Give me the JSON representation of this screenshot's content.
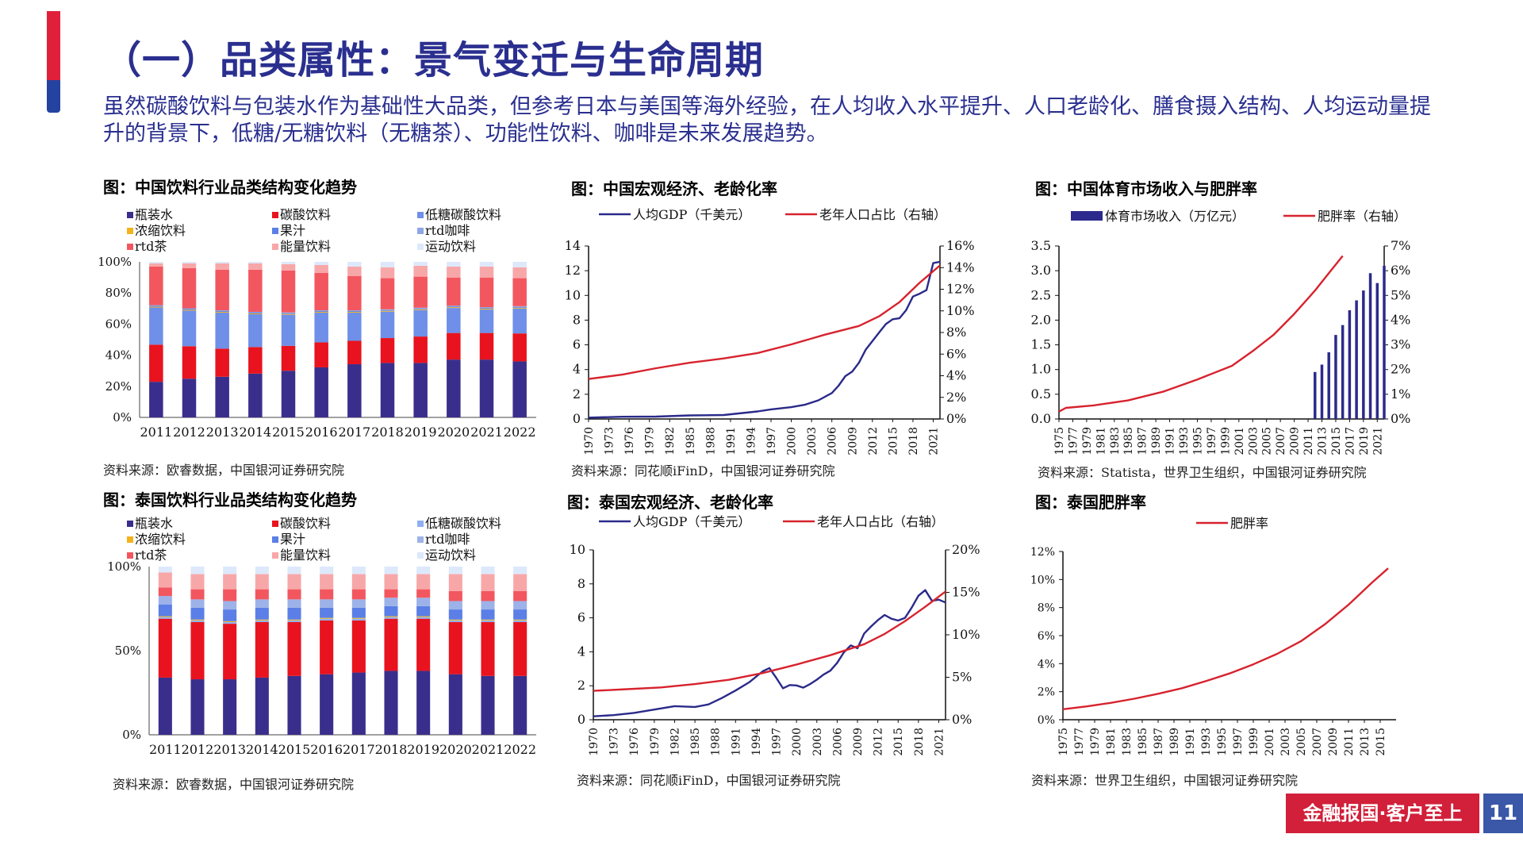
{
  "page": {
    "title": "（一）品类属性：景气变迁与生命周期",
    "intro": "虽然碳酸饮料与包装水作为基础性大品类，但参考日本与美国等海外经验，在人均收入水平提升、人口老龄化、膳食摄入结构、人均运动量提升的背景下，低糖/无糖饮料（无糖茶）、功能性饮料、咖啡是未来发展趋势。",
    "footer_slogan": "金融报国·客户至上",
    "page_number": "11",
    "colors": {
      "title": "#2a2f8f",
      "accent_red": "#d21f3a",
      "accent_blue": "#3a57a8"
    }
  },
  "panels": {
    "cn_mix": {
      "title": "图：中国饮料行业品类结构变化趋势",
      "source": "资料来源：欧睿数据，中国银河证券研究院"
    },
    "cn_macro": {
      "title": "图：中国宏观经济、老龄化率",
      "source": "资料来源：同花顺iFinD，中国银河证券研究院"
    },
    "cn_sport": {
      "title": "图：中国体育市场收入与肥胖率",
      "source": "资料来源：Statista，世界卫生组织，中国银河证券研究院"
    },
    "th_mix": {
      "title": "图：泰国饮料行业品类结构变化趋势",
      "source": "资料来源：欧睿数据，中国银河证券研究院"
    },
    "th_macro": {
      "title": "图：泰国宏观经济、老龄化率",
      "source": "资料来源：同花顺iFinD，中国银河证券研究院"
    },
    "th_obesity": {
      "title": "图：泰国肥胖率",
      "source": "资料来源：世界卫生组织，中国银河证券研究院"
    }
  },
  "chart_data": [
    {
      "id": "cn_mix",
      "type": "bar",
      "stacked": true,
      "percent": true,
      "title": "图：中国饮料行业品类结构变化趋势",
      "categories": [
        "2011",
        "2012",
        "2013",
        "2014",
        "2015",
        "2016",
        "2017",
        "2018",
        "2019",
        "2020",
        "2021",
        "2022"
      ],
      "y_ticks": [
        "0%",
        "20%",
        "40%",
        "60%",
        "80%",
        "100%"
      ],
      "ylim": [
        0,
        100
      ],
      "legend_position": "top",
      "series": [
        {
          "name": "瓶装水",
          "color": "#3a2e8c",
          "values": [
            23,
            25,
            26,
            28,
            30,
            32,
            34,
            35,
            35,
            37,
            37,
            36
          ]
        },
        {
          "name": "碳酸饮料",
          "color": "#e8131e",
          "values": [
            24,
            21,
            18,
            17,
            16,
            16,
            15,
            16,
            17,
            17,
            17,
            18
          ]
        },
        {
          "name": "低糖碳酸饮料",
          "color": "#6f8fe8",
          "values": [
            24,
            23,
            23,
            21,
            20,
            19,
            18,
            17,
            17,
            16,
            15,
            16
          ]
        },
        {
          "name": "浓缩饮料",
          "color": "#f2b31c",
          "values": [
            0.5,
            0.5,
            0.5,
            0.5,
            0.5,
            0.5,
            0.5,
            0.5,
            0.5,
            0.5,
            0.5,
            0.5
          ]
        },
        {
          "name": "果汁",
          "color": "#5b7fe6",
          "values": [
            0.5,
            0.5,
            0.5,
            0.5,
            0.5,
            0.5,
            0.5,
            0.5,
            0.5,
            0.5,
            0.5,
            0.5
          ]
        },
        {
          "name": "rtd咖啡",
          "color": "#8ea6e8",
          "values": [
            0.5,
            0.5,
            0.5,
            0.5,
            0.5,
            0.5,
            0.5,
            0.5,
            0.5,
            0.5,
            0.5,
            0.5
          ]
        },
        {
          "name": "rtd茶",
          "color": "#f2575f",
          "values": [
            25,
            26,
            26,
            27,
            27,
            24,
            22,
            20,
            20,
            18,
            19,
            18
          ]
        },
        {
          "name": "能量饮料",
          "color": "#f8a7a9",
          "values": [
            2,
            3,
            4,
            4,
            4,
            5,
            6,
            7,
            7,
            7,
            7,
            7
          ]
        },
        {
          "name": "运动饮料",
          "color": "#dde8fb",
          "values": [
            1,
            1,
            1,
            1,
            1.5,
            2,
            3,
            3.5,
            2.5,
            3,
            3,
            3.5
          ]
        }
      ]
    },
    {
      "id": "cn_macro",
      "type": "line",
      "title": "图：中国宏观经济、老龄化率",
      "x_ticks": [
        "1970",
        "1973",
        "1976",
        "1979",
        "1982",
        "1985",
        "1988",
        "1991",
        "1994",
        "1997",
        "2000",
        "2003",
        "2006",
        "2009",
        "2012",
        "2015",
        "2018",
        "2021"
      ],
      "x_range": [
        1970,
        2022
      ],
      "y_left_ticks": [
        "0",
        "2",
        "4",
        "6",
        "8",
        "10",
        "12",
        "14"
      ],
      "y_left_range": [
        0,
        14
      ],
      "y_right_ticks": [
        "0%",
        "2%",
        "4%",
        "6%",
        "8%",
        "10%",
        "12%",
        "14%",
        "16%"
      ],
      "y_right_range": [
        0,
        16
      ],
      "series": [
        {
          "name": "人均GDP（千美元）",
          "axis": "left",
          "color": "#2a2a8a",
          "x": [
            1970,
            1975,
            1980,
            1985,
            1990,
            1995,
            1997,
            2000,
            2002,
            2004,
            2006,
            2007,
            2008,
            2009,
            2010,
            2011,
            2012,
            2013,
            2014,
            2015,
            2016,
            2017,
            2018,
            2019,
            2020,
            2021,
            2022
          ],
          "y": [
            0.11,
            0.18,
            0.19,
            0.29,
            0.32,
            0.61,
            0.78,
            0.96,
            1.15,
            1.51,
            2.1,
            2.7,
            3.47,
            3.83,
            4.55,
            5.6,
            6.3,
            7.0,
            7.68,
            8.07,
            8.15,
            8.82,
            9.91,
            10.14,
            10.43,
            12.62,
            12.72
          ]
        },
        {
          "name": "老年人口占比（右轴）",
          "axis": "right",
          "color": "#d7232e",
          "x": [
            1970,
            1975,
            1980,
            1985,
            1990,
            1995,
            2000,
            2005,
            2010,
            2013,
            2016,
            2019,
            2022
          ],
          "y": [
            3.7,
            4.1,
            4.7,
            5.2,
            5.6,
            6.1,
            6.9,
            7.8,
            8.6,
            9.5,
            10.8,
            12.6,
            14.2
          ]
        }
      ]
    },
    {
      "id": "cn_sport",
      "type": "bar+line",
      "title": "图：中国体育市场收入与肥胖率",
      "x_ticks": [
        "1975",
        "1977",
        "1979",
        "1981",
        "1983",
        "1985",
        "1987",
        "1989",
        "1991",
        "1993",
        "1995",
        "1997",
        "1999",
        "2001",
        "2003",
        "2005",
        "2007",
        "2009",
        "2011",
        "2013",
        "2015",
        "2017",
        "2019",
        "2021"
      ],
      "x_range": [
        1975,
        2022
      ],
      "y_left_ticks": [
        "0.0",
        "0.5",
        "1.0",
        "1.5",
        "2.0",
        "2.5",
        "3.0",
        "3.5"
      ],
      "y_left_range": [
        0,
        3.5
      ],
      "y_right_ticks": [
        "0%",
        "1%",
        "2%",
        "3%",
        "4%",
        "5%",
        "6%",
        "7%"
      ],
      "y_right_range": [
        0,
        7
      ],
      "series": [
        {
          "name": "体育市场收入（万亿元）",
          "axis": "left",
          "type": "bar",
          "color": "#2c2a8c",
          "x": [
            2012,
            2013,
            2014,
            2015,
            2016,
            2017,
            2018,
            2019,
            2020,
            2021,
            2022
          ],
          "y": [
            0.95,
            1.1,
            1.35,
            1.7,
            1.9,
            2.2,
            2.4,
            2.6,
            2.95,
            2.75,
            3.1
          ]
        },
        {
          "name": "肥胖率（右轴）",
          "axis": "right",
          "type": "line",
          "color": "#d7232e",
          "x": [
            1975,
            1976,
            1980,
            1985,
            1990,
            1995,
            2000,
            2003,
            2006,
            2009,
            2012,
            2014,
            2016
          ],
          "y": [
            0.3,
            0.45,
            0.55,
            0.75,
            1.1,
            1.6,
            2.15,
            2.75,
            3.4,
            4.25,
            5.2,
            5.9,
            6.6
          ]
        }
      ]
    },
    {
      "id": "th_mix",
      "type": "bar",
      "stacked": true,
      "percent": true,
      "title": "图：泰国饮料行业品类结构变化趋势",
      "categories": [
        "2011",
        "2012",
        "2013",
        "2014",
        "2015",
        "2016",
        "2017",
        "2018",
        "2019",
        "2020",
        "2021",
        "2022"
      ],
      "y_ticks": [
        "0%",
        "50%",
        "100%"
      ],
      "ylim": [
        0,
        100
      ],
      "legend_position": "top",
      "series": [
        {
          "name": "瓶装水",
          "color": "#3a2e8c",
          "values": [
            34,
            33,
            33,
            34,
            35,
            36,
            37,
            38,
            38,
            36,
            35,
            35
          ]
        },
        {
          "name": "碳酸饮料",
          "color": "#e8131e",
          "values": [
            35,
            34,
            33,
            33,
            32,
            32,
            31,
            31,
            31,
            31,
            32,
            32
          ]
        },
        {
          "name": "低糖碳酸饮料",
          "color": "#8fb0f0",
          "values": [
            1,
            1,
            1,
            1,
            1,
            1,
            1,
            1,
            1,
            1,
            1,
            1
          ]
        },
        {
          "name": "浓缩饮料",
          "color": "#f2b31c",
          "values": [
            0.5,
            0.5,
            0.5,
            0.5,
            0.5,
            0.5,
            0.5,
            0.5,
            0.5,
            0.5,
            0.5,
            0.5
          ]
        },
        {
          "name": "果汁",
          "color": "#5b7fe6",
          "values": [
            7,
            7,
            7,
            7,
            7,
            6,
            6,
            6,
            6,
            6,
            6,
            6
          ]
        },
        {
          "name": "rtd咖啡",
          "color": "#9db2e8",
          "values": [
            5,
            5,
            5,
            5,
            5,
            5,
            5,
            5,
            5,
            5,
            5,
            5
          ]
        },
        {
          "name": "rtd茶",
          "color": "#f2575f",
          "values": [
            5,
            6,
            7,
            6,
            6,
            6,
            6,
            5,
            5,
            6,
            6,
            6
          ]
        },
        {
          "name": "能量饮料",
          "color": "#f8a7a9",
          "values": [
            9,
            9,
            9,
            9,
            9,
            9,
            9,
            9,
            9,
            10,
            10,
            10
          ]
        },
        {
          "name": "运动饮料",
          "color": "#dde8fb",
          "values": [
            3.5,
            4.5,
            4.5,
            4.5,
            4.5,
            4.5,
            4.5,
            4.5,
            4.5,
            4.5,
            4.5,
            4.5
          ]
        }
      ]
    },
    {
      "id": "th_macro",
      "type": "line",
      "title": "图：泰国宏观经济、老龄化率",
      "x_ticks": [
        "1970",
        "1973",
        "1976",
        "1979",
        "1982",
        "1985",
        "1988",
        "1991",
        "1994",
        "1997",
        "2000",
        "2003",
        "2006",
        "2009",
        "2012",
        "2015",
        "2018",
        "2021"
      ],
      "x_range": [
        1970,
        2022
      ],
      "y_left_ticks": [
        "0",
        "2",
        "4",
        "6",
        "8",
        "10"
      ],
      "y_left_range": [
        0,
        10
      ],
      "y_right_ticks": [
        "0%",
        "5%",
        "10%",
        "15%",
        "20%"
      ],
      "y_right_range": [
        0,
        20
      ],
      "series": [
        {
          "name": "人均GDP（千美元）",
          "axis": "left",
          "color": "#2a2a8a",
          "x": [
            1970,
            1973,
            1976,
            1979,
            1982,
            1985,
            1987,
            1989,
            1991,
            1993,
            1995,
            1996,
            1997,
            1998,
            1999,
            2000,
            2001,
            2002,
            2003,
            2004,
            2005,
            2006,
            2007,
            2008,
            2009,
            2010,
            2011,
            2012,
            2013,
            2014,
            2015,
            2016,
            2017,
            2018,
            2019,
            2020,
            2021,
            2022
          ],
          "y": [
            0.2,
            0.27,
            0.4,
            0.6,
            0.8,
            0.75,
            0.9,
            1.28,
            1.72,
            2.2,
            2.85,
            3.04,
            2.47,
            1.85,
            2.04,
            2.02,
            1.89,
            2.1,
            2.36,
            2.66,
            2.89,
            3.35,
            3.97,
            4.38,
            4.21,
            5.08,
            5.49,
            5.86,
            6.17,
            5.95,
            5.84,
            5.99,
            6.6,
            7.3,
            7.63,
            7.0,
            7.07,
            6.9
          ]
        },
        {
          "name": "老年人口占比（右轴）",
          "axis": "right",
          "color": "#d7232e",
          "x": [
            1970,
            1975,
            1980,
            1985,
            1990,
            1995,
            2000,
            2005,
            2010,
            2013,
            2016,
            2019,
            2022
          ],
          "y": [
            3.4,
            3.6,
            3.8,
            4.2,
            4.7,
            5.5,
            6.5,
            7.6,
            8.9,
            10.1,
            11.6,
            13.3,
            15.1
          ]
        }
      ]
    },
    {
      "id": "th_obesity",
      "type": "line",
      "title": "图：泰国肥胖率",
      "x_ticks": [
        "1975",
        "1977",
        "1979",
        "1981",
        "1983",
        "1985",
        "1987",
        "1989",
        "1991",
        "1993",
        "1995",
        "1997",
        "1999",
        "2001",
        "2003",
        "2005",
        "2007",
        "2009",
        "2011",
        "2013",
        "2015"
      ],
      "x_range": [
        1975,
        2017
      ],
      "y_left_ticks": [
        "0%",
        "2%",
        "4%",
        "6%",
        "8%",
        "10%",
        "12%"
      ],
      "y_left_range": [
        0,
        12
      ],
      "series": [
        {
          "name": "肥胖率",
          "axis": "left",
          "color": "#d7232e",
          "x": [
            1975,
            1978,
            1981,
            1984,
            1987,
            1990,
            1993,
            1996,
            1999,
            2002,
            2005,
            2008,
            2011,
            2014,
            2016
          ],
          "y": [
            0.75,
            0.95,
            1.2,
            1.5,
            1.85,
            2.25,
            2.75,
            3.3,
            3.95,
            4.7,
            5.6,
            6.8,
            8.2,
            9.8,
            10.8
          ]
        }
      ]
    }
  ]
}
